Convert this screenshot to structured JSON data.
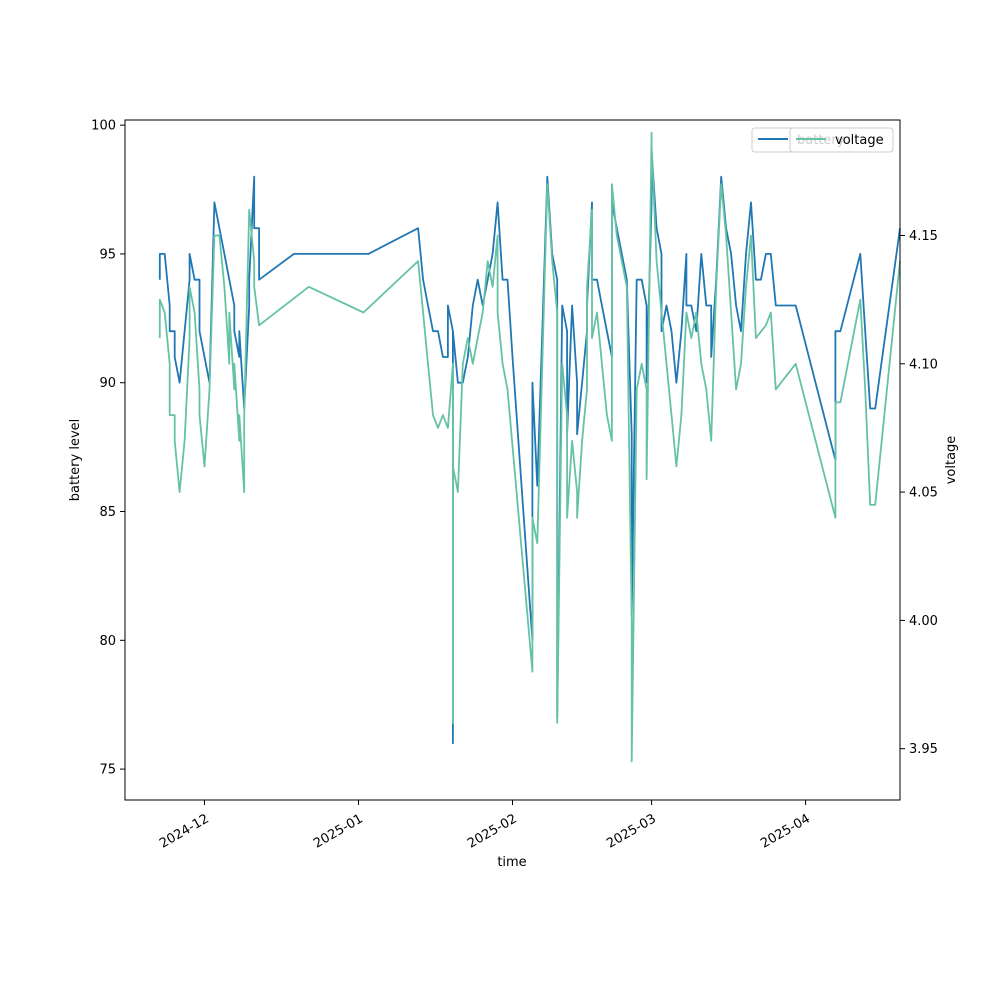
{
  "chart_data": {
    "type": "line",
    "title": "",
    "xlabel": "time",
    "ylabel": "battery level",
    "y2label": "voltage",
    "grid": false,
    "legend_placement": "top-right",
    "x_ticks": [
      "2024-12",
      "2025-01",
      "2025-02",
      "2025-03",
      "2025-04"
    ],
    "x_tick_dates": [
      "2024-12-01",
      "2025-01-01",
      "2025-02-01",
      "2025-03-01",
      "2025-04-01"
    ],
    "xlim": [
      "2024-11-15",
      "2025-04-20"
    ],
    "ylim": [
      73.8,
      100.2
    ],
    "y_ticks": [
      75,
      80,
      85,
      90,
      95,
      100
    ],
    "y2lim": [
      3.93,
      4.195
    ],
    "y2_ticks": [
      "3.95",
      "4.00",
      "4.05",
      "4.10",
      "4.15"
    ],
    "series": [
      {
        "name": "battery",
        "axis": "left",
        "color": "#1f77b4",
        "points": [
          [
            "2024-11-22",
            94
          ],
          [
            "2024-11-22",
            95
          ],
          [
            "2024-11-23",
            95
          ],
          [
            "2024-11-24",
            93
          ],
          [
            "2024-11-24",
            92
          ],
          [
            "2024-11-25",
            92
          ],
          [
            "2024-11-25",
            91
          ],
          [
            "2024-11-26",
            90
          ],
          [
            "2024-11-27",
            92
          ],
          [
            "2024-11-28",
            94
          ],
          [
            "2024-11-28",
            95
          ],
          [
            "2024-11-29",
            94
          ],
          [
            "2024-11-30",
            94
          ],
          [
            "2024-11-30",
            93
          ],
          [
            "2024-11-30",
            92
          ],
          [
            "2024-12-01",
            91
          ],
          [
            "2024-12-02",
            90
          ],
          [
            "2024-12-03",
            97
          ],
          [
            "2024-12-03",
            97
          ],
          [
            "2024-12-04",
            96
          ],
          [
            "2024-12-05",
            95
          ],
          [
            "2024-12-06",
            94
          ],
          [
            "2024-12-07",
            93
          ],
          [
            "2024-12-07",
            92
          ],
          [
            "2024-12-08",
            91
          ],
          [
            "2024-12-08",
            92
          ],
          [
            "2024-12-09",
            89
          ],
          [
            "2024-12-10",
            93
          ],
          [
            "2024-12-10",
            94
          ],
          [
            "2024-12-11",
            98
          ],
          [
            "2024-12-11",
            96
          ],
          [
            "2024-12-12",
            96
          ],
          [
            "2024-12-12",
            94
          ],
          [
            "2024-12-19",
            95
          ],
          [
            "2025-01-03",
            95
          ],
          [
            "2025-01-13",
            96
          ],
          [
            "2025-01-14",
            94
          ],
          [
            "2025-01-15",
            93
          ],
          [
            "2025-01-16",
            92
          ],
          [
            "2025-01-17",
            92
          ],
          [
            "2025-01-18",
            91
          ],
          [
            "2025-01-19",
            91
          ],
          [
            "2025-01-19",
            93
          ],
          [
            "2025-01-20",
            92
          ],
          [
            "2025-01-20",
            76
          ],
          [
            "2025-01-20",
            92
          ],
          [
            "2025-01-21",
            90
          ],
          [
            "2025-01-22",
            90
          ],
          [
            "2025-01-23",
            91
          ],
          [
            "2025-01-24",
            93
          ],
          [
            "2025-01-25",
            94
          ],
          [
            "2025-01-26",
            93
          ],
          [
            "2025-01-27",
            94
          ],
          [
            "2025-01-28",
            95
          ],
          [
            "2025-01-29",
            97
          ],
          [
            "2025-01-30",
            94
          ],
          [
            "2025-01-31",
            94
          ],
          [
            "2025-02-01",
            91
          ],
          [
            "2025-02-05",
            80
          ],
          [
            "2025-02-05",
            90
          ],
          [
            "2025-02-06",
            86
          ],
          [
            "2025-02-08",
            98
          ],
          [
            "2025-02-09",
            95
          ],
          [
            "2025-02-10",
            94
          ],
          [
            "2025-02-10",
            77
          ],
          [
            "2025-02-11",
            93
          ],
          [
            "2025-02-12",
            92
          ],
          [
            "2025-02-12",
            88
          ],
          [
            "2025-02-13",
            93
          ],
          [
            "2025-02-14",
            90
          ],
          [
            "2025-02-14",
            88
          ],
          [
            "2025-02-15",
            90
          ],
          [
            "2025-02-16",
            92
          ],
          [
            "2025-02-16",
            93
          ],
          [
            "2025-02-17",
            97
          ],
          [
            "2025-02-17",
            94
          ],
          [
            "2025-02-18",
            94
          ],
          [
            "2025-02-19",
            93
          ],
          [
            "2025-02-20",
            92
          ],
          [
            "2025-02-21",
            91
          ],
          [
            "2025-02-21",
            97
          ],
          [
            "2025-02-22",
            96
          ],
          [
            "2025-02-23",
            95
          ],
          [
            "2025-02-24",
            94
          ],
          [
            "2025-02-25",
            88
          ],
          [
            "2025-02-25",
            81
          ],
          [
            "2025-02-26",
            94
          ],
          [
            "2025-02-27",
            94
          ],
          [
            "2025-02-28",
            93
          ],
          [
            "2025-02-28",
            90
          ],
          [
            "2025-03-01",
            97
          ],
          [
            "2025-03-01",
            99
          ],
          [
            "2025-03-02",
            96
          ],
          [
            "2025-03-03",
            95
          ],
          [
            "2025-03-03",
            92
          ],
          [
            "2025-03-04",
            93
          ],
          [
            "2025-03-05",
            92
          ],
          [
            "2025-03-06",
            90
          ],
          [
            "2025-03-07",
            92
          ],
          [
            "2025-03-08",
            95
          ],
          [
            "2025-03-08",
            93
          ],
          [
            "2025-03-09",
            93
          ],
          [
            "2025-03-10",
            92
          ],
          [
            "2025-03-11",
            95
          ],
          [
            "2025-03-12",
            93
          ],
          [
            "2025-03-13",
            93
          ],
          [
            "2025-03-13",
            91
          ],
          [
            "2025-03-14",
            94
          ],
          [
            "2025-03-15",
            98
          ],
          [
            "2025-03-16",
            96
          ],
          [
            "2025-03-17",
            95
          ],
          [
            "2025-03-18",
            93
          ],
          [
            "2025-03-19",
            92
          ],
          [
            "2025-03-20",
            95
          ],
          [
            "2025-03-21",
            97
          ],
          [
            "2025-03-22",
            94
          ],
          [
            "2025-03-23",
            94
          ],
          [
            "2025-03-24",
            95
          ],
          [
            "2025-03-25",
            95
          ],
          [
            "2025-03-26",
            93
          ],
          [
            "2025-03-30",
            93
          ],
          [
            "2025-04-07",
            87
          ],
          [
            "2025-04-07",
            92
          ],
          [
            "2025-04-08",
            92
          ],
          [
            "2025-04-12",
            95
          ],
          [
            "2025-04-13",
            92
          ],
          [
            "2025-04-14",
            89
          ],
          [
            "2025-04-15",
            89
          ],
          [
            "2025-04-20",
            96
          ]
        ]
      },
      {
        "name": "voltage",
        "axis": "right",
        "color": "#66c2a5",
        "points": [
          [
            "2024-11-22",
            4.11
          ],
          [
            "2024-11-22",
            4.125
          ],
          [
            "2024-11-23",
            4.12
          ],
          [
            "2024-11-24",
            4.1
          ],
          [
            "2024-11-24",
            4.08
          ],
          [
            "2024-11-25",
            4.08
          ],
          [
            "2024-11-25",
            4.07
          ],
          [
            "2024-11-26",
            4.05
          ],
          [
            "2024-11-27",
            4.07
          ],
          [
            "2024-11-28",
            4.11
          ],
          [
            "2024-11-28",
            4.13
          ],
          [
            "2024-11-29",
            4.12
          ],
          [
            "2024-11-30",
            4.09
          ],
          [
            "2024-11-30",
            4.08
          ],
          [
            "2024-12-01",
            4.06
          ],
          [
            "2024-12-02",
            4.09
          ],
          [
            "2024-12-03",
            4.15
          ],
          [
            "2024-12-04",
            4.15
          ],
          [
            "2024-12-05",
            4.13
          ],
          [
            "2024-12-06",
            4.1
          ],
          [
            "2024-12-06",
            4.12
          ],
          [
            "2024-12-07",
            4.09
          ],
          [
            "2024-12-07",
            4.1
          ],
          [
            "2024-12-08",
            4.07
          ],
          [
            "2024-12-08",
            4.08
          ],
          [
            "2024-12-09",
            4.05
          ],
          [
            "2024-12-09",
            4.08
          ],
          [
            "2024-12-10",
            4.16
          ],
          [
            "2024-12-11",
            4.14
          ],
          [
            "2024-12-11",
            4.13
          ],
          [
            "2024-12-12",
            4.115
          ],
          [
            "2024-12-22",
            4.13
          ],
          [
            "2025-01-02",
            4.12
          ],
          [
            "2025-01-13",
            4.14
          ],
          [
            "2025-01-14",
            4.12
          ],
          [
            "2025-01-15",
            4.1
          ],
          [
            "2025-01-16",
            4.08
          ],
          [
            "2025-01-17",
            4.075
          ],
          [
            "2025-01-18",
            4.08
          ],
          [
            "2025-01-19",
            4.075
          ],
          [
            "2025-01-20",
            4.1
          ],
          [
            "2025-01-20",
            3.96
          ],
          [
            "2025-01-20",
            4.06
          ],
          [
            "2025-01-21",
            4.05
          ],
          [
            "2025-01-22",
            4.1
          ],
          [
            "2025-01-23",
            4.11
          ],
          [
            "2025-01-24",
            4.1
          ],
          [
            "2025-01-25",
            4.11
          ],
          [
            "2025-01-26",
            4.12
          ],
          [
            "2025-01-27",
            4.14
          ],
          [
            "2025-01-28",
            4.13
          ],
          [
            "2025-01-29",
            4.15
          ],
          [
            "2025-01-29",
            4.12
          ],
          [
            "2025-01-30",
            4.1
          ],
          [
            "2025-01-31",
            4.09
          ],
          [
            "2025-02-05",
            3.98
          ],
          [
            "2025-02-05",
            4.04
          ],
          [
            "2025-02-06",
            4.03
          ],
          [
            "2025-02-08",
            4.17
          ],
          [
            "2025-02-09",
            4.14
          ],
          [
            "2025-02-10",
            4.12
          ],
          [
            "2025-02-10",
            3.96
          ],
          [
            "2025-02-11",
            4.1
          ],
          [
            "2025-02-12",
            4.08
          ],
          [
            "2025-02-12",
            4.04
          ],
          [
            "2025-02-13",
            4.07
          ],
          [
            "2025-02-14",
            4.05
          ],
          [
            "2025-02-14",
            4.04
          ],
          [
            "2025-02-15",
            4.07
          ],
          [
            "2025-02-16",
            4.09
          ],
          [
            "2025-02-16",
            4.13
          ],
          [
            "2025-02-17",
            4.16
          ],
          [
            "2025-02-17",
            4.11
          ],
          [
            "2025-02-18",
            4.12
          ],
          [
            "2025-02-19",
            4.1
          ],
          [
            "2025-02-20",
            4.08
          ],
          [
            "2025-02-21",
            4.07
          ],
          [
            "2025-02-21",
            4.17
          ],
          [
            "2025-02-22",
            4.15
          ],
          [
            "2025-02-23",
            4.14
          ],
          [
            "2025-02-24",
            4.13
          ],
          [
            "2025-02-25",
            4.0
          ],
          [
            "2025-02-25",
            3.945
          ],
          [
            "2025-02-26",
            4.09
          ],
          [
            "2025-02-27",
            4.1
          ],
          [
            "2025-02-28",
            4.09
          ],
          [
            "2025-02-28",
            4.06
          ],
          [
            "2025-02-28",
            4.055
          ],
          [
            "2025-03-01",
            4.19
          ],
          [
            "2025-03-01",
            4.185
          ],
          [
            "2025-03-02",
            4.14
          ],
          [
            "2025-03-03",
            4.12
          ],
          [
            "2025-03-04",
            4.1
          ],
          [
            "2025-03-05",
            4.08
          ],
          [
            "2025-03-06",
            4.06
          ],
          [
            "2025-03-07",
            4.08
          ],
          [
            "2025-03-08",
            4.12
          ],
          [
            "2025-03-09",
            4.11
          ],
          [
            "2025-03-10",
            4.12
          ],
          [
            "2025-03-11",
            4.1
          ],
          [
            "2025-03-12",
            4.09
          ],
          [
            "2025-03-13",
            4.07
          ],
          [
            "2025-03-14",
            4.13
          ],
          [
            "2025-03-15",
            4.17
          ],
          [
            "2025-03-16",
            4.15
          ],
          [
            "2025-03-17",
            4.12
          ],
          [
            "2025-03-18",
            4.09
          ],
          [
            "2025-03-19",
            4.1
          ],
          [
            "2025-03-20",
            4.13
          ],
          [
            "2025-03-21",
            4.15
          ],
          [
            "2025-03-22",
            4.11
          ],
          [
            "2025-03-24",
            4.115
          ],
          [
            "2025-03-25",
            4.12
          ],
          [
            "2025-03-26",
            4.09
          ],
          [
            "2025-03-30",
            4.1
          ],
          [
            "2025-04-07",
            4.04
          ],
          [
            "2025-04-07",
            4.085
          ],
          [
            "2025-04-08",
            4.085
          ],
          [
            "2025-04-12",
            4.125
          ],
          [
            "2025-04-13",
            4.09
          ],
          [
            "2025-04-14",
            4.045
          ],
          [
            "2025-04-15",
            4.045
          ],
          [
            "2025-04-20",
            4.14
          ]
        ]
      }
    ]
  }
}
